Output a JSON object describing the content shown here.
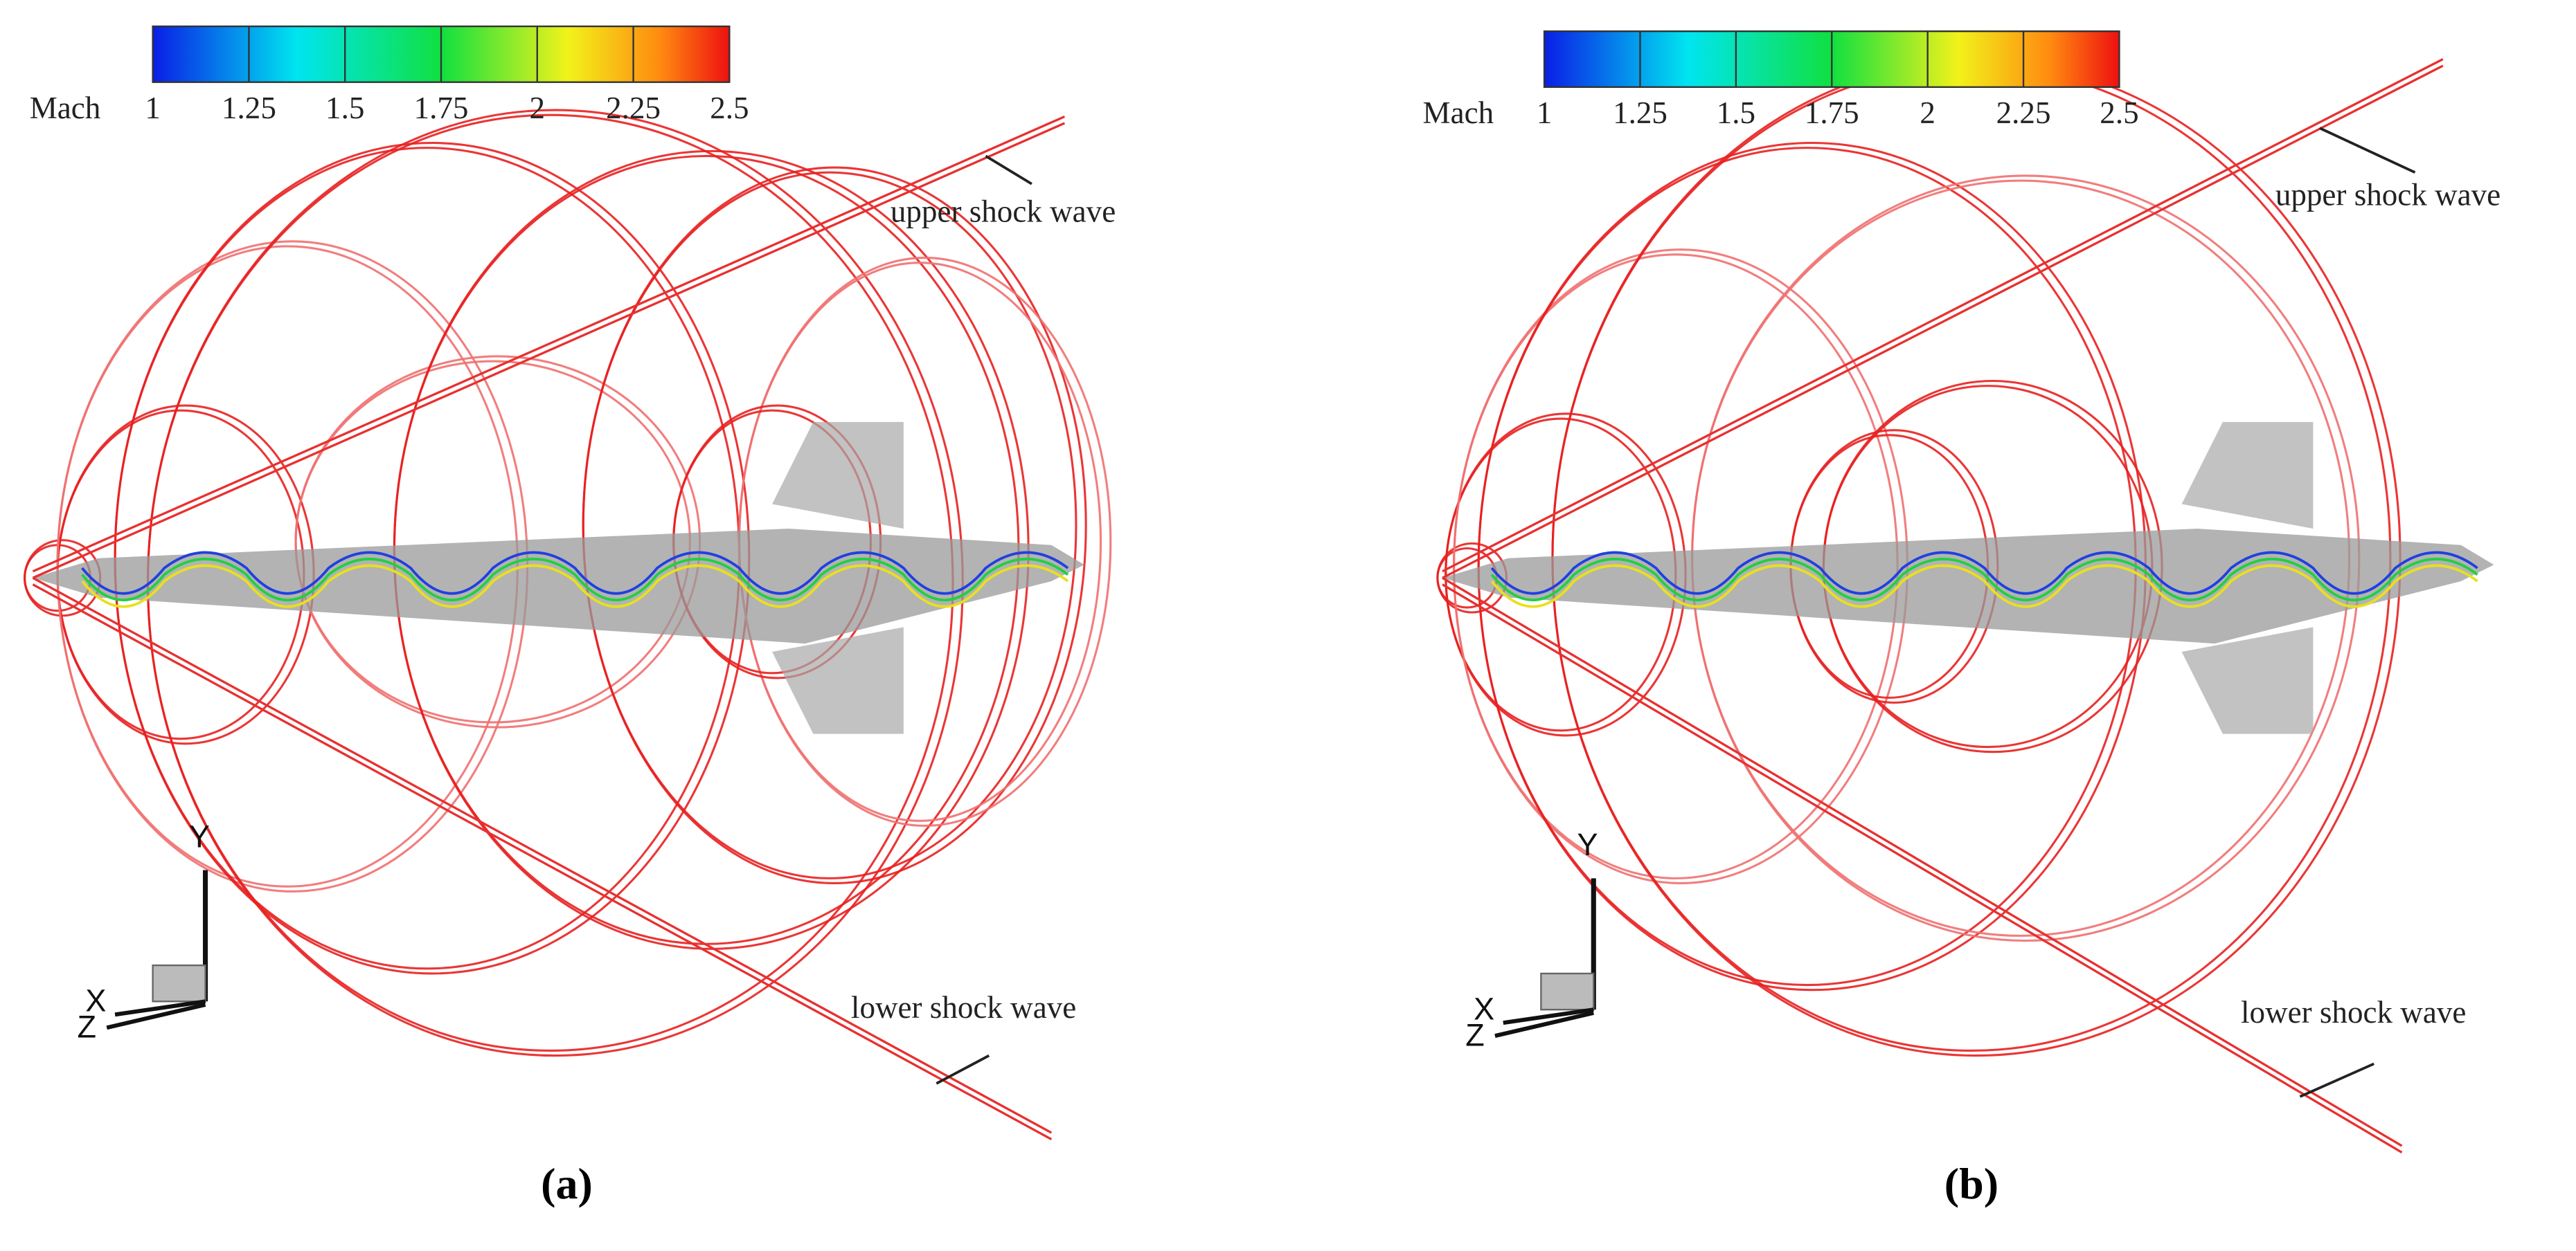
{
  "panels": [
    {
      "colorbar": {
        "label": "Mach",
        "ticks": [
          1,
          1.25,
          1.5,
          1.75,
          2,
          2.25,
          2.5
        ]
      },
      "annotations": [
        "upper shock wave",
        "lower shock wave"
      ],
      "axes": [
        "Y",
        "X",
        "Z"
      ],
      "caption": "(a)"
    },
    {
      "colorbar": {
        "label": "Mach",
        "ticks": [
          1,
          1.25,
          1.5,
          1.75,
          2,
          2.25,
          2.5
        ]
      },
      "annotations": [
        "upper shock wave",
        "lower shock wave"
      ],
      "axes": [
        "Y",
        "X",
        "Z"
      ],
      "caption": "(b)"
    }
  ]
}
